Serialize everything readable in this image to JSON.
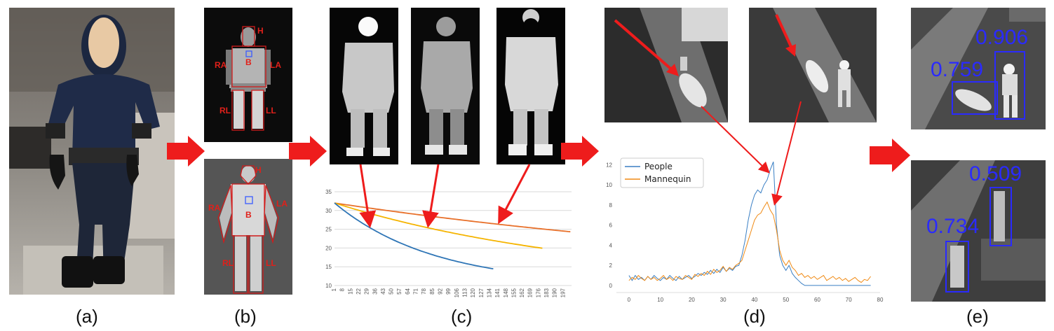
{
  "captions": [
    "(a)",
    "(b)",
    "(c)",
    "(d)",
    "(e)"
  ],
  "body_labels": {
    "head": "H",
    "body": "B",
    "right_arm": "RA",
    "left_arm": "LA",
    "right_leg": "RL",
    "left_leg": "LL"
  },
  "colors": {
    "arrow": "#ee1c1c",
    "people": "#3a7fc4",
    "mannequin": "#f08a14",
    "box": "#2a2aff"
  },
  "detections": {
    "top": [
      "0.906",
      "0.759"
    ],
    "bottom": [
      "0.509",
      "0.734"
    ]
  },
  "chart_data": [
    {
      "type": "line",
      "yticks": [
        10,
        15,
        20,
        25,
        30,
        35
      ],
      "ylim": [
        10,
        35
      ],
      "xtick_labels": [
        "1",
        "8",
        "15",
        "22",
        "29",
        "36",
        "43",
        "50",
        "57",
        "64",
        "71",
        "78",
        "85",
        "92",
        "99",
        "106",
        "113",
        "120",
        "127",
        "134",
        "141",
        "148",
        "155",
        "162",
        "169",
        "176",
        "183",
        "190",
        "197"
      ],
      "series": [
        {
          "color": "#e8702a",
          "x": [
            1,
            204
          ],
          "start": 32,
          "end": 24.3
        },
        {
          "color": "#f5b400",
          "x": [
            1,
            180
          ],
          "start": 32,
          "end": 19.9
        },
        {
          "color": "#2e75b6",
          "x": [
            1,
            138
          ],
          "start": 32,
          "end": 14.4
        }
      ]
    },
    {
      "type": "line",
      "xlim": [
        -4,
        80
      ],
      "ylim": [
        -0.7,
        12.8
      ],
      "xticks": [
        0,
        10,
        20,
        30,
        40,
        50,
        60,
        70,
        80
      ],
      "yticks": [
        0,
        2,
        4,
        6,
        8,
        10,
        12
      ],
      "legend": "top-left",
      "series": [
        {
          "name": "People",
          "color": "#3a7fc4",
          "values": [
            1.0,
            0.5,
            1.0,
            0.6,
            0.8,
            0.5,
            0.9,
            0.6,
            1.0,
            0.7,
            0.5,
            0.8,
            0.6,
            1.0,
            0.7,
            0.5,
            0.9,
            0.6,
            0.8,
            1.0,
            0.7,
            0.9,
            1.2,
            1.0,
            1.3,
            1.1,
            1.5,
            1.2,
            1.6,
            1.3,
            1.8,
            1.4,
            1.7,
            1.5,
            1.9,
            2.0,
            3.0,
            4.5,
            6.5,
            8.0,
            9.0,
            9.5,
            9.2,
            10.0,
            10.5,
            11.5,
            12.3,
            6.0,
            3.0,
            2.0,
            1.5,
            2.0,
            1.2,
            0.8,
            0.5,
            0.2,
            0,
            0,
            0,
            0,
            0,
            0,
            0,
            0,
            0,
            0,
            0,
            0,
            0,
            0,
            0,
            0,
            0,
            0,
            0,
            0,
            0,
            0
          ]
        },
        {
          "name": "Mannequin",
          "color": "#f08a14",
          "values": [
            0.5,
            0.8,
            0.6,
            1.0,
            0.7,
            0.5,
            0.9,
            0.6,
            0.8,
            0.5,
            0.7,
            1.0,
            0.6,
            0.8,
            0.5,
            0.9,
            0.7,
            0.6,
            1.0,
            0.8,
            0.6,
            1.1,
            0.9,
            1.2,
            1.0,
            1.4,
            1.1,
            1.6,
            1.3,
            1.5,
            1.9,
            1.4,
            1.8,
            1.6,
            2.0,
            2.2,
            2.5,
            3.5,
            4.5,
            5.5,
            6.5,
            7.0,
            7.2,
            7.8,
            8.3,
            7.5,
            7.0,
            5.5,
            3.5,
            2.5,
            2.0,
            2.5,
            1.8,
            1.5,
            1.0,
            1.2,
            0.8,
            1.0,
            0.7,
            0.9,
            0.6,
            0.8,
            1.0,
            0.5,
            0.7,
            0.9,
            0.6,
            0.8,
            0.5,
            0.7,
            0.4,
            0.6,
            0.8,
            0.5,
            0.3,
            0.6,
            0.5,
            0.9
          ]
        }
      ]
    }
  ]
}
